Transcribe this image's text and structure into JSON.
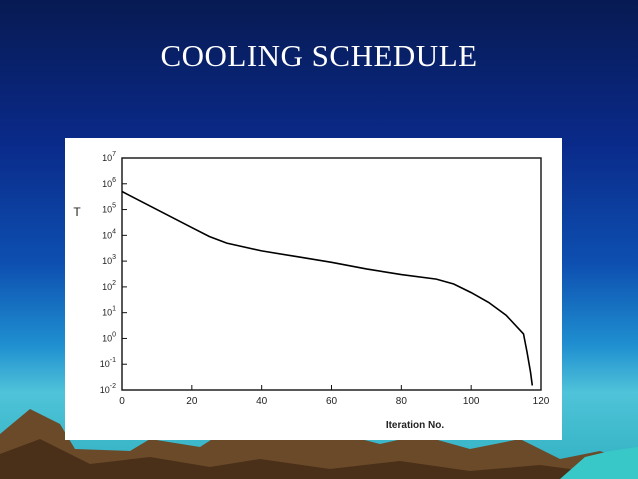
{
  "slide": {
    "title": "COOLING SCHEDULE"
  },
  "chart_data": {
    "type": "line",
    "title": "",
    "xlabel": "Iteration  No.",
    "ylabel": "T",
    "xlim": [
      0,
      120
    ],
    "ylim_log10": [
      -2,
      7
    ],
    "y_scale": "log",
    "x_ticks": [
      "0",
      "20",
      "40",
      "60",
      "80",
      "100",
      "120"
    ],
    "y_ticks": [
      {
        "base": "10",
        "exp": "7"
      },
      {
        "base": "10",
        "exp": "6"
      },
      {
        "base": "10",
        "exp": "5"
      },
      {
        "base": "10",
        "exp": "4"
      },
      {
        "base": "10",
        "exp": "3"
      },
      {
        "base": "10",
        "exp": "2"
      },
      {
        "base": "10",
        "exp": "1"
      },
      {
        "base": "10",
        "exp": "0"
      },
      {
        "base": "10",
        "exp": "-1"
      },
      {
        "base": "10",
        "exp": "-2"
      }
    ],
    "series": [
      {
        "x": [
          0,
          10,
          20,
          25,
          30,
          40,
          50,
          60,
          70,
          80,
          90,
          95,
          100,
          105,
          110,
          115,
          116,
          117,
          117.5
        ],
        "y": [
          500000,
          100000,
          20000,
          9000,
          5000,
          2500,
          1500,
          900,
          500,
          300,
          200,
          130,
          60,
          25,
          8,
          1.5,
          0.3,
          0.05,
          0.015
        ]
      }
    ],
    "grid": false,
    "line_color": "#000000"
  }
}
